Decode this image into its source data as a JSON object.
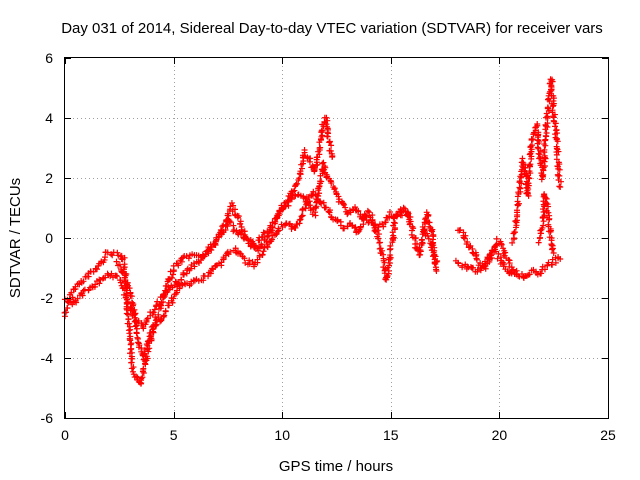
{
  "chart_data": {
    "type": "scatter",
    "title": "Day 031 of 2014, Sidereal Day-to-day VTEC variation (SDTVAR) for receiver vars",
    "xlabel": "GPS time / hours",
    "ylabel": "SDTVAR / TECUs",
    "xlim": [
      0,
      25
    ],
    "ylim": [
      -6,
      6
    ],
    "xticks": [
      0,
      5,
      10,
      15,
      20,
      25
    ],
    "yticks": [
      -6,
      -4,
      -2,
      0,
      2,
      4,
      6
    ],
    "grid": true,
    "marker": "+",
    "series_color": "#ff0000",
    "series": [
      {
        "name": "SDTVAR",
        "trace_a": [
          [
            0.0,
            -2.6
          ],
          [
            0.2,
            -2.1
          ],
          [
            0.4,
            -1.7
          ],
          [
            0.7,
            -1.5
          ],
          [
            1.0,
            -1.3
          ],
          [
            1.3,
            -1.1
          ],
          [
            1.6,
            -0.9
          ],
          [
            1.9,
            -0.5
          ],
          [
            2.2,
            -0.5
          ],
          [
            2.5,
            -0.5
          ],
          [
            2.7,
            -0.7
          ],
          [
            2.8,
            -1.4
          ],
          [
            2.9,
            -2.5
          ],
          [
            3.0,
            -3.5
          ],
          [
            3.1,
            -4.3
          ],
          [
            3.3,
            -4.7
          ],
          [
            3.5,
            -4.9
          ],
          [
            3.6,
            -4.5
          ],
          [
            3.8,
            -3.8
          ],
          [
            4.0,
            -3.2
          ],
          [
            4.2,
            -2.7
          ],
          [
            4.4,
            -2.3
          ],
          [
            4.6,
            -1.8
          ],
          [
            4.8,
            -1.4
          ],
          [
            5.0,
            -1.0
          ],
          [
            5.3,
            -0.8
          ],
          [
            5.6,
            -0.6
          ],
          [
            5.9,
            -0.6
          ],
          [
            6.2,
            -0.6
          ],
          [
            6.5,
            -0.5
          ],
          [
            6.8,
            -0.3
          ],
          [
            7.1,
            0.0
          ],
          [
            7.4,
            0.3
          ],
          [
            7.5,
            0.8
          ],
          [
            7.7,
            1.1
          ],
          [
            8.0,
            0.6
          ],
          [
            8.3,
            0.1
          ],
          [
            8.6,
            -0.2
          ],
          [
            8.9,
            -0.4
          ],
          [
            9.2,
            -0.1
          ],
          [
            9.5,
            0.3
          ],
          [
            9.8,
            0.7
          ],
          [
            10.1,
            1.0
          ],
          [
            10.4,
            1.3
          ],
          [
            10.7,
            1.5
          ],
          [
            11.0,
            1.4
          ],
          [
            11.3,
            1.0
          ],
          [
            11.5,
            0.8
          ],
          [
            11.7,
            1.6
          ],
          [
            11.9,
            2.5
          ],
          [
            12.1,
            2.0
          ],
          [
            12.3,
            1.8
          ],
          [
            12.5,
            1.4
          ],
          [
            12.8,
            1.1
          ],
          [
            13.1,
            0.8
          ],
          [
            13.4,
            1.0
          ],
          [
            13.7,
            0.6
          ],
          [
            14.0,
            0.9
          ],
          [
            14.3,
            0.3
          ],
          [
            14.5,
            -0.2
          ],
          [
            14.7,
            -0.9
          ],
          [
            14.8,
            -1.4
          ],
          [
            15.0,
            -0.5
          ],
          [
            15.2,
            0.7
          ],
          [
            15.5,
            1.0
          ],
          [
            15.8,
            0.8
          ],
          [
            16.0,
            0.2
          ],
          [
            16.3,
            -0.6
          ],
          [
            16.5,
            0.2
          ],
          [
            16.7,
            0.8
          ],
          [
            16.9,
            0.1
          ],
          [
            17.0,
            -0.8
          ],
          [
            17.1,
            -1.1
          ]
        ],
        "trace_b": [
          [
            0.0,
            -2.0
          ],
          [
            0.3,
            -2.2
          ],
          [
            0.6,
            -2.0
          ],
          [
            0.9,
            -1.8
          ],
          [
            1.2,
            -1.6
          ],
          [
            1.5,
            -1.5
          ],
          [
            1.8,
            -1.3
          ],
          [
            2.1,
            -1.2
          ],
          [
            2.4,
            -1.3
          ],
          [
            2.6,
            -1.5
          ],
          [
            2.8,
            -1.9
          ],
          [
            3.0,
            -2.3
          ],
          [
            3.3,
            -2.8
          ],
          [
            3.6,
            -3.0
          ],
          [
            3.9,
            -2.6
          ],
          [
            4.2,
            -2.3
          ],
          [
            4.5,
            -2.0
          ],
          [
            4.8,
            -1.7
          ],
          [
            5.1,
            -1.5
          ],
          [
            5.4,
            -1.6
          ],
          [
            5.7,
            -1.5
          ],
          [
            6.0,
            -1.4
          ],
          [
            6.3,
            -1.4
          ],
          [
            6.6,
            -1.2
          ],
          [
            6.9,
            -1.0
          ],
          [
            7.2,
            -0.8
          ],
          [
            7.5,
            -0.5
          ],
          [
            7.8,
            -0.4
          ],
          [
            8.1,
            -0.6
          ],
          [
            8.4,
            -0.8
          ],
          [
            8.7,
            -0.9
          ],
          [
            9.0,
            -0.6
          ],
          [
            9.3,
            -0.3
          ],
          [
            9.6,
            0.0
          ],
          [
            9.9,
            0.3
          ],
          [
            10.2,
            0.5
          ],
          [
            10.5,
            0.3
          ],
          [
            10.8,
            0.6
          ],
          [
            11.1,
            1.1
          ],
          [
            11.4,
            1.5
          ],
          [
            11.7,
            1.3
          ],
          [
            12.0,
            1.0
          ],
          [
            12.3,
            0.7
          ],
          [
            12.6,
            0.5
          ],
          [
            12.9,
            0.3
          ],
          [
            13.2,
            0.5
          ],
          [
            13.5,
            0.2
          ],
          [
            13.8,
            0.7
          ],
          [
            14.1,
            0.5
          ],
          [
            14.4,
            0.3
          ],
          [
            14.7,
            0.5
          ],
          [
            15.0,
            0.8
          ],
          [
            15.3,
            0.7
          ],
          [
            15.6,
            0.9
          ],
          [
            15.9,
            0.7
          ]
        ],
        "trace_c": [
          [
            2.4,
            -0.8
          ],
          [
            2.7,
            -1.2
          ],
          [
            3.0,
            -1.8
          ],
          [
            3.2,
            -2.5
          ],
          [
            3.4,
            -3.5
          ],
          [
            3.6,
            -4.0
          ],
          [
            3.8,
            -3.6
          ],
          [
            4.0,
            -3.1
          ],
          [
            4.2,
            -2.9
          ],
          [
            4.5,
            -2.7
          ],
          [
            4.8,
            -2.2
          ],
          [
            5.1,
            -1.9
          ],
          [
            5.4,
            -1.3
          ],
          [
            5.7,
            -1.0
          ],
          [
            6.0,
            -0.9
          ],
          [
            6.3,
            -0.7
          ],
          [
            6.6,
            -0.4
          ],
          [
            6.9,
            -0.1
          ],
          [
            7.2,
            0.3
          ],
          [
            7.5,
            0.6
          ],
          [
            7.8,
            0.3
          ],
          [
            8.1,
            0.1
          ],
          [
            8.4,
            -0.1
          ],
          [
            8.7,
            -0.3
          ],
          [
            9.0,
            0.0
          ],
          [
            9.3,
            0.2
          ],
          [
            9.6,
            0.5
          ],
          [
            9.9,
            0.9
          ],
          [
            10.2,
            1.2
          ],
          [
            10.5,
            1.6
          ],
          [
            10.8,
            2.0
          ],
          [
            11.0,
            2.9
          ],
          [
            11.2,
            2.7
          ],
          [
            11.5,
            2.2
          ],
          [
            11.8,
            3.3
          ],
          [
            11.9,
            3.8
          ],
          [
            12.0,
            4.0
          ],
          [
            12.1,
            3.4
          ],
          [
            12.3,
            2.7
          ]
        ],
        "trace_d": [
          [
            16.5,
            0.3
          ],
          [
            16.7,
            0.1
          ],
          [
            16.9,
            -0.3
          ],
          [
            17.0,
            -0.5
          ],
          [
            17.1,
            -0.8
          ]
        ],
        "trace_e": [
          [
            18.1,
            0.3
          ],
          [
            18.3,
            0.2
          ],
          [
            18.5,
            -0.2
          ],
          [
            18.7,
            -0.3
          ],
          [
            18.9,
            -0.6
          ],
          [
            19.1,
            -0.9
          ],
          [
            19.3,
            -1.0
          ],
          [
            19.5,
            -0.8
          ],
          [
            19.7,
            -0.4
          ],
          [
            19.9,
            -0.1
          ],
          [
            20.1,
            -0.2
          ],
          [
            20.3,
            -0.6
          ],
          [
            20.5,
            -0.9
          ],
          [
            20.7,
            -1.1
          ],
          [
            20.9,
            -1.2
          ],
          [
            21.1,
            -1.3
          ],
          [
            21.3,
            -1.2
          ],
          [
            21.5,
            -1.1
          ],
          [
            21.7,
            -1.2
          ],
          [
            21.9,
            -1.1
          ],
          [
            22.1,
            -1.0
          ],
          [
            22.3,
            -0.9
          ],
          [
            22.5,
            -0.8
          ],
          [
            22.7,
            -0.7
          ],
          [
            22.8,
            -0.7
          ]
        ],
        "trace_f": [
          [
            18.0,
            -0.8
          ],
          [
            18.3,
            -0.9
          ],
          [
            18.6,
            -1.0
          ],
          [
            18.9,
            -1.1
          ],
          [
            19.2,
            -1.0
          ],
          [
            19.5,
            -0.6
          ],
          [
            19.8,
            -0.4
          ],
          [
            20.1,
            -0.8
          ],
          [
            20.4,
            -1.1
          ],
          [
            20.7,
            -1.2
          ]
        ],
        "trace_g": [
          [
            20.6,
            -0.1
          ],
          [
            20.8,
            0.6
          ],
          [
            20.9,
            1.4
          ],
          [
            21.0,
            2.1
          ],
          [
            21.1,
            2.6
          ],
          [
            21.2,
            2.2
          ],
          [
            21.3,
            1.4
          ],
          [
            21.4,
            2.4
          ],
          [
            21.5,
            3.3
          ],
          [
            21.6,
            3.6
          ],
          [
            21.7,
            3.8
          ],
          [
            21.8,
            3.2
          ],
          [
            21.9,
            2.5
          ],
          [
            22.0,
            2.0
          ],
          [
            22.1,
            3.0
          ],
          [
            22.2,
            4.0
          ],
          [
            22.3,
            4.8
          ],
          [
            22.4,
            5.3
          ],
          [
            22.5,
            4.2
          ],
          [
            22.6,
            3.5
          ],
          [
            22.7,
            2.5
          ],
          [
            22.8,
            1.7
          ]
        ],
        "trace_h": [
          [
            21.8,
            -0.1
          ],
          [
            22.0,
            0.6
          ],
          [
            22.1,
            1.5
          ],
          [
            22.2,
            1.1
          ],
          [
            22.3,
            0.4
          ],
          [
            22.4,
            -0.2
          ],
          [
            22.5,
            -0.5
          ]
        ]
      }
    ]
  }
}
